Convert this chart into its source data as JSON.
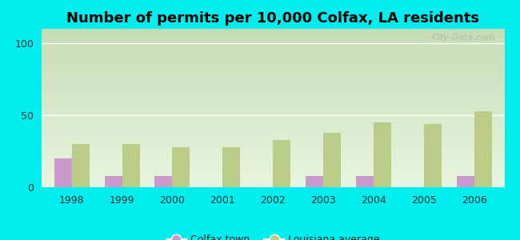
{
  "title": "Number of permits per 10,000 Colfax, LA residents",
  "years": [
    1998,
    1999,
    2000,
    2001,
    2002,
    2003,
    2004,
    2005,
    2006
  ],
  "colfax_values": [
    20,
    8,
    8,
    0,
    0,
    8,
    8,
    0,
    8
  ],
  "louisiana_values": [
    30,
    30,
    28,
    28,
    33,
    38,
    45,
    44,
    53
  ],
  "colfax_color": "#cc99cc",
  "louisiana_color": "#bbcc88",
  "background_color": "#00eeee",
  "ylim": [
    0,
    110
  ],
  "yticks": [
    0,
    50,
    100
  ],
  "bar_width": 0.35,
  "title_fontsize": 13,
  "legend_label_colfax": "Colfax town",
  "legend_label_louisiana": "Louisiana average",
  "watermark": "City-Data.com"
}
